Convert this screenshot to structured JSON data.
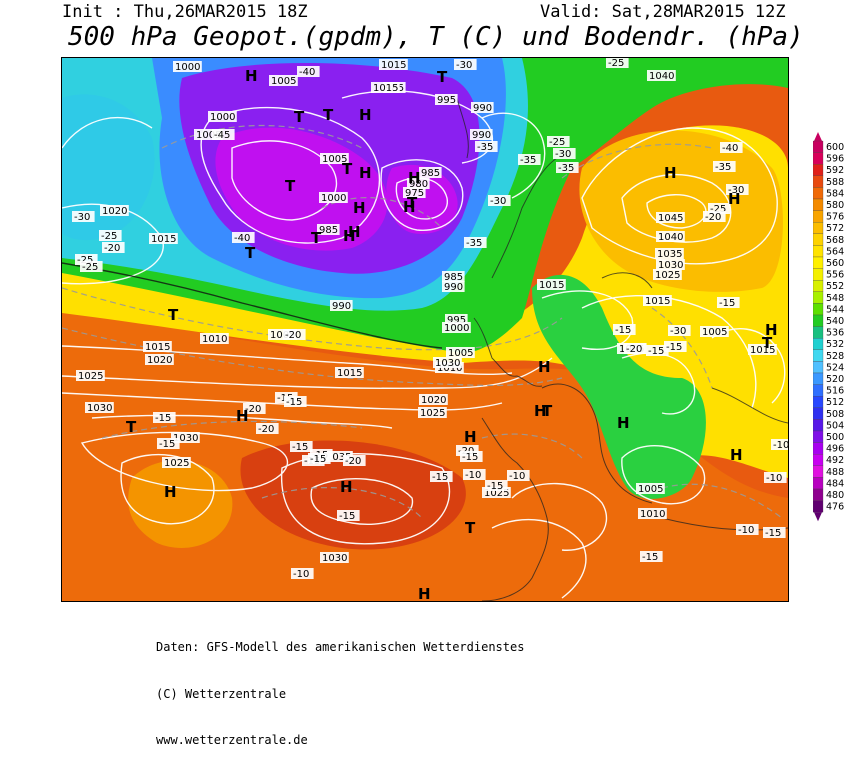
{
  "header": {
    "init": "Init : Thu,26MAR2015 18Z",
    "valid": "Valid: Sat,28MAR2015 12Z",
    "title": "500 hPa Geopot.(gpdm), T (C) und Bodendr. (hPa)"
  },
  "legend": {
    "values": [
      "600",
      "596",
      "592",
      "588",
      "584",
      "580",
      "576",
      "572",
      "568",
      "564",
      "560",
      "556",
      "552",
      "548",
      "544",
      "540",
      "536",
      "532",
      "528",
      "524",
      "520",
      "516",
      "512",
      "508",
      "504",
      "500",
      "496",
      "492",
      "488",
      "484",
      "480",
      "476"
    ],
    "colors": [
      "#c80060",
      "#d8005a",
      "#e0201a",
      "#e84a10",
      "#f06a08",
      "#f48a00",
      "#f8a400",
      "#fbbd00",
      "#fdd200",
      "#ffe300",
      "#fff000",
      "#f4f000",
      "#d8f000",
      "#a8f000",
      "#5ce000",
      "#22cc22",
      "#18c080",
      "#20d0d0",
      "#40d8f0",
      "#50c0ff",
      "#3a98ff",
      "#3070ff",
      "#2848ff",
      "#3030f0",
      "#5818e8",
      "#8010e8",
      "#a800f0",
      "#c800f0",
      "#e010e0",
      "#b800c0",
      "#900090",
      "#600070"
    ]
  },
  "pressure_labels": [
    "1000",
    "1005",
    "1015",
    "985",
    "995",
    "990",
    "1000",
    "1005",
    "990",
    "985",
    "980",
    "975",
    "1000",
    "1005",
    "985",
    "1020",
    "1015",
    "990",
    "985",
    "990",
    "995",
    "1000",
    "1005",
    "1015",
    "1040",
    "1045",
    "1040",
    "1035",
    "1030",
    "1025",
    "1015",
    "1005",
    "1005",
    "1015",
    "1010",
    "1005",
    "1015",
    "1020",
    "1025",
    "1030",
    "1030",
    "1025",
    "1035",
    "1010",
    "1020",
    "1025",
    "1015",
    "1030",
    "1025",
    "1005",
    "1010",
    "1015",
    "1030"
  ],
  "temperature_labels": [
    "-40",
    "-30",
    "-25",
    "-45",
    "-35",
    "-40",
    "-35",
    "-35",
    "-30",
    "-25",
    "-30",
    "-35",
    "-40",
    "-35",
    "-30",
    "-25",
    "-20",
    "-30",
    "-25",
    "-25",
    "-20",
    "-25",
    "-20",
    "-15",
    "-20",
    "-15",
    "-20",
    "-15",
    "-15",
    "-15",
    "-15",
    "-15",
    "-20",
    "-15",
    "-15",
    "-20",
    "-15",
    "-10",
    "-15",
    "-10",
    "-10",
    "-10",
    "-15",
    "-20",
    "-15",
    "-15",
    "-30",
    "-15",
    "-15",
    "-10",
    "-15",
    "-15",
    "-10"
  ],
  "highs_lows": [
    "H",
    "T",
    "T",
    "H",
    "T",
    "H",
    "H",
    "T",
    "T",
    "H",
    "T",
    "T",
    "T",
    "H",
    "H",
    "H",
    "H",
    "H",
    "H",
    "T",
    "H",
    "H",
    "T",
    "H",
    "T",
    "H",
    "H",
    "H",
    "T",
    "H",
    "H",
    "T",
    "H"
  ],
  "footer": {
    "line1": "Daten: GFS-Modell des amerikanischen Wetterdienstes",
    "line2": "(C) Wetterzentrale",
    "line3": "www.wetterzentrale.de"
  }
}
